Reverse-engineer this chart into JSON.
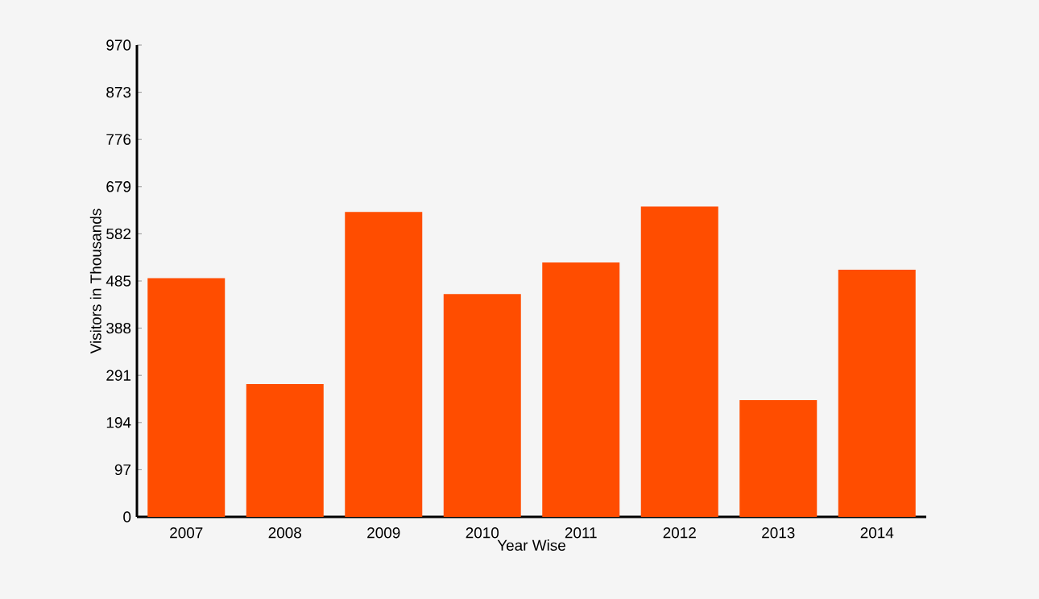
{
  "chart_data": {
    "type": "bar",
    "xlabel": "Year Wise",
    "ylabel": "Visitors in Thousands",
    "categories": [
      "2007",
      "2008",
      "2009",
      "2010",
      "2011",
      "2012",
      "2013",
      "2014"
    ],
    "values": [
      491,
      273,
      627,
      458,
      523,
      638,
      240,
      508
    ],
    "color": "#ff4d00",
    "ylim": [
      0,
      970
    ],
    "yticks": [
      0,
      97,
      194,
      291,
      388,
      485,
      582,
      679,
      776,
      873,
      970
    ],
    "grid": false
  }
}
